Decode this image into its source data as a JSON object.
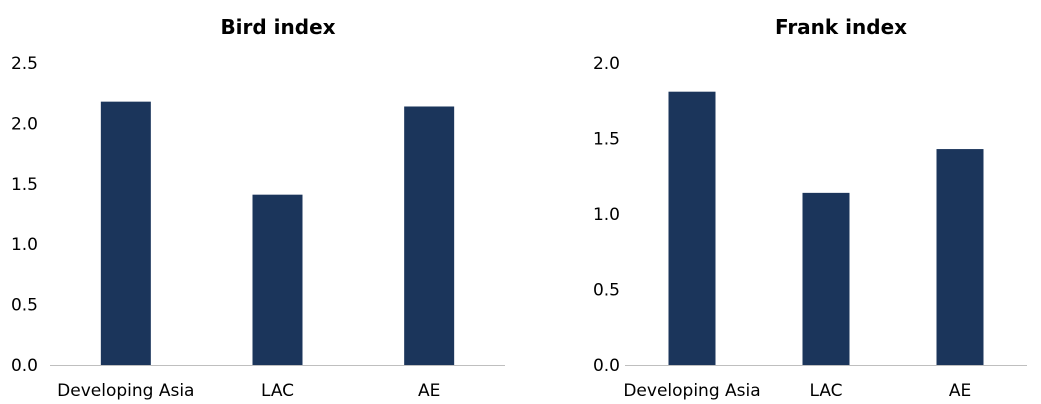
{
  "chart_data": [
    {
      "type": "bar",
      "title": "Bird index",
      "categories": [
        "Developing Asia",
        "LAC",
        "AE"
      ],
      "values": [
        2.18,
        1.41,
        2.14
      ],
      "ylim": [
        0,
        2.5
      ],
      "yticks": [
        "0.0",
        "0.5",
        "1.0",
        "1.5",
        "2.0",
        "2.5"
      ],
      "xlabel": "",
      "ylabel": "",
      "grid": false,
      "bar_color": "#1b355b"
    },
    {
      "type": "bar",
      "title": "Frank index",
      "categories": [
        "Developing Asia",
        "LAC",
        "AE"
      ],
      "values": [
        1.81,
        1.14,
        1.43
      ],
      "ylim": [
        0,
        2.0
      ],
      "yticks": [
        "0.0",
        "0.5",
        "1.0",
        "1.5",
        "2.0"
      ],
      "xlabel": "",
      "ylabel": "",
      "grid": false,
      "bar_color": "#1b355b"
    }
  ]
}
